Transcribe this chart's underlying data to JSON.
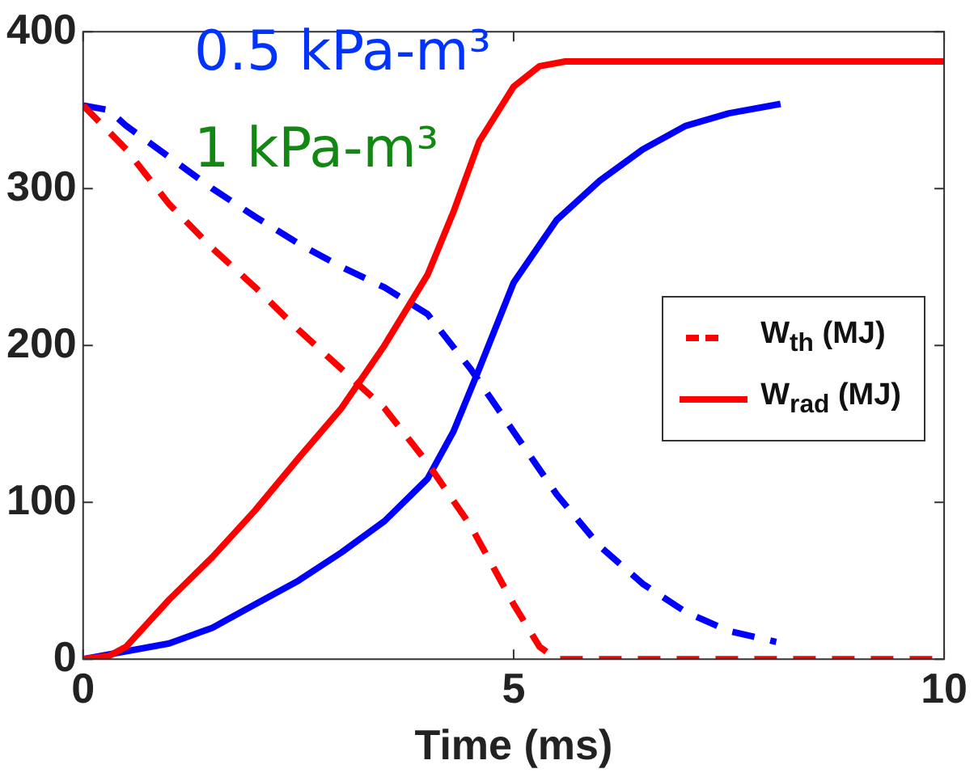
{
  "chart_data": {
    "type": "line",
    "xlabel": "Time (ms)",
    "xlim": [
      0,
      10
    ],
    "xticks": [
      0,
      5,
      10
    ],
    "ylim": [
      0,
      400
    ],
    "yticks": [
      0,
      100,
      200,
      300,
      400
    ],
    "grid": false,
    "legend": "right",
    "marker": "none",
    "annotations": [
      "0.5 kPa-m³",
      "1 kPa-m³"
    ],
    "series": [
      {
        "name": "W$_{th}$ (MJ)",
        "color": "#ff0000",
        "line_style": "dashed",
        "x": [
          0,
          0.5,
          1,
          1.5,
          2,
          2.5,
          3,
          3.5,
          4,
          4.5,
          5,
          5.3,
          5.5,
          10
        ],
        "values": [
          353,
          325,
          290,
          262,
          237,
          210,
          185,
          160,
          125,
          85,
          35,
          8,
          0,
          0
        ]
      },
      {
        "name": "W$_{rad}$ (MJ)",
        "color": "#ff0000",
        "line_style": "solid",
        "x": [
          0,
          0.3,
          0.5,
          1,
          1.5,
          2,
          2.5,
          3,
          3.5,
          4,
          4.3,
          4.6,
          5,
          5.3,
          5.6,
          10
        ],
        "values": [
          0,
          2,
          8,
          38,
          65,
          95,
          128,
          160,
          200,
          245,
          285,
          330,
          365,
          378,
          381,
          381
        ]
      },
      {
        "color": "#0000ff",
        "line_style": "dashed",
        "x": [
          0,
          0.3,
          0.5,
          1,
          1.5,
          2,
          2.5,
          3,
          3.5,
          4,
          4.5,
          5,
          5.5,
          6,
          6.5,
          7,
          7.5,
          8.05
        ],
        "values": [
          353,
          350,
          340,
          320,
          300,
          282,
          265,
          250,
          237,
          220,
          185,
          145,
          105,
          72,
          48,
          30,
          18,
          11
        ]
      },
      {
        "color": "#0000ff",
        "line_style": "solid",
        "x": [
          0,
          1,
          1.5,
          2,
          2.5,
          3,
          3.5,
          4,
          4.3,
          4.6,
          5,
          5.5,
          6,
          6.5,
          7,
          7.5,
          8.1
        ],
        "values": [
          0,
          10,
          20,
          35,
          50,
          68,
          88,
          115,
          145,
          185,
          240,
          280,
          305,
          325,
          340,
          348,
          354
        ]
      }
    ]
  }
}
